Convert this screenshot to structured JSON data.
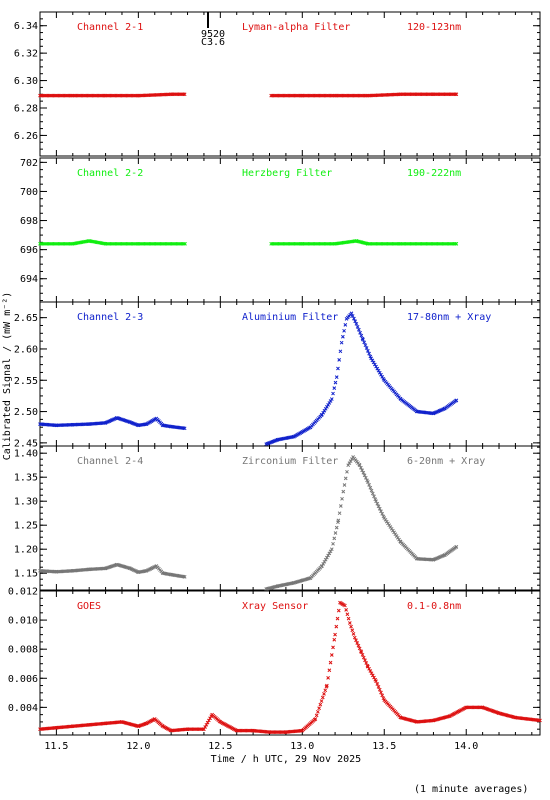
{
  "colors": {
    "red": "#dd1111",
    "green": "#11ee11",
    "blue": "#1122cc",
    "gray": "#777777",
    "axis": "#000000"
  },
  "xaxis": {
    "label": "Time / h UTC, 29 Nov 2025",
    "range": [
      11.4,
      14.45
    ],
    "ticks": [
      11.5,
      12.0,
      12.5,
      13.0,
      13.5,
      14.0
    ],
    "tick_labels": [
      "11.5",
      "12.0",
      "12.5",
      "13.0",
      "13.5",
      "14.0"
    ]
  },
  "ylabel": "Calibrated Signal / (mW m⁻²)",
  "footer": "(1 minute averages)",
  "event_marker": {
    "lines": [
      "9520",
      "C3.6"
    ]
  },
  "chart_data": [
    {
      "type": "scatter",
      "name": "Channel 2-1",
      "filter": "Lyman-alpha Filter",
      "band": "120-123nm",
      "color_key": "red",
      "ylim": [
        6.245,
        6.35
      ],
      "yticks": [
        6.26,
        6.28,
        6.3,
        6.32,
        6.34
      ],
      "ytick_labels": [
        "6.26",
        "6.28",
        "6.30",
        "6.32",
        "6.34"
      ],
      "x": [
        11.4,
        11.6,
        11.8,
        12.0,
        12.2,
        12.29,
        12.81,
        13.0,
        13.2,
        13.4,
        13.6,
        13.8,
        13.94
      ],
      "y": [
        6.289,
        6.289,
        6.289,
        6.289,
        6.29,
        6.29,
        6.289,
        6.289,
        6.289,
        6.289,
        6.29,
        6.29,
        6.29
      ],
      "gap": [
        12.29,
        12.81
      ]
    },
    {
      "type": "scatter",
      "name": "Channel 2-2",
      "filter": "Herzberg Filter",
      "band": "190-222nm",
      "color_key": "green",
      "ylim": [
        692.4,
        702.3
      ],
      "yticks": [
        694,
        696,
        698,
        700,
        702
      ],
      "ytick_labels": [
        "694",
        "696",
        "698",
        "700",
        "702"
      ],
      "x": [
        11.4,
        11.6,
        11.7,
        11.8,
        12.0,
        12.29,
        12.81,
        13.0,
        13.2,
        13.33,
        13.4,
        13.6,
        13.94
      ],
      "y": [
        696.4,
        696.4,
        696.6,
        696.4,
        696.4,
        696.4,
        696.4,
        696.4,
        696.4,
        696.6,
        696.4,
        696.4,
        696.4
      ],
      "gap": [
        12.29,
        12.81
      ]
    },
    {
      "type": "scatter",
      "name": "Channel 2-3",
      "filter": "Aluminium Filter",
      "band": "17-80nm + Xray",
      "color_key": "blue",
      "ylim": [
        2.445,
        2.675
      ],
      "yticks": [
        2.45,
        2.5,
        2.55,
        2.6,
        2.65
      ],
      "ytick_labels": [
        "2.45",
        "2.50",
        "2.55",
        "2.60",
        "2.65"
      ],
      "x": [
        11.4,
        11.5,
        11.6,
        11.7,
        11.8,
        11.87,
        11.95,
        12.0,
        12.05,
        12.11,
        12.15,
        12.2,
        12.29,
        12.78,
        12.85,
        12.95,
        13.05,
        13.12,
        13.18,
        13.21,
        13.24,
        13.27,
        13.3,
        13.33,
        13.37,
        13.42,
        13.5,
        13.6,
        13.7,
        13.8,
        13.87,
        13.94
      ],
      "y": [
        2.48,
        2.478,
        2.479,
        2.48,
        2.482,
        2.49,
        2.483,
        2.478,
        2.48,
        2.489,
        2.478,
        2.476,
        2.473,
        2.448,
        2.455,
        2.46,
        2.475,
        2.495,
        2.52,
        2.555,
        2.61,
        2.648,
        2.657,
        2.64,
        2.615,
        2.585,
        2.55,
        2.52,
        2.5,
        2.497,
        2.505,
        2.518
      ],
      "gap": [
        12.29,
        12.78
      ]
    },
    {
      "type": "scatter",
      "name": "Channel 2-4",
      "filter": "Zirconium Filter",
      "band": "6-20nm + Xray",
      "color_key": "gray",
      "ylim": [
        1.115,
        1.415
      ],
      "yticks": [
        1.15,
        1.2,
        1.25,
        1.3,
        1.35,
        1.4
      ],
      "ytick_labels": [
        "1.15",
        "1.20",
        "1.25",
        "1.30",
        "1.35",
        "1.40"
      ],
      "x": [
        11.4,
        11.5,
        11.6,
        11.7,
        11.8,
        11.87,
        11.95,
        12.0,
        12.05,
        12.11,
        12.15,
        12.2,
        12.29,
        12.78,
        12.85,
        12.95,
        13.05,
        13.12,
        13.18,
        13.22,
        13.25,
        13.28,
        13.31,
        13.35,
        13.4,
        13.45,
        13.5,
        13.6,
        13.7,
        13.8,
        13.87,
        13.94
      ],
      "y": [
        1.155,
        1.153,
        1.155,
        1.158,
        1.16,
        1.168,
        1.16,
        1.152,
        1.155,
        1.165,
        1.15,
        1.147,
        1.142,
        1.117,
        1.123,
        1.13,
        1.14,
        1.165,
        1.2,
        1.26,
        1.32,
        1.375,
        1.392,
        1.375,
        1.34,
        1.3,
        1.265,
        1.215,
        1.18,
        1.178,
        1.188,
        1.205
      ],
      "gap": [
        12.29,
        12.78
      ]
    },
    {
      "type": "scatter",
      "name": "GOES",
      "filter": "Xray Sensor",
      "band": "0.1-0.8nm",
      "color_key": "red",
      "ylim": [
        0.0021,
        0.012
      ],
      "yticks": [
        0.004,
        0.006,
        0.008,
        0.01,
        0.012
      ],
      "ytick_labels": [
        "0.004",
        "0.006",
        "0.008",
        "0.010",
        "0.012"
      ],
      "x": [
        11.4,
        11.5,
        11.6,
        11.7,
        11.8,
        11.9,
        12.0,
        12.05,
        12.1,
        12.15,
        12.2,
        12.3,
        12.4,
        12.45,
        12.5,
        12.6,
        12.7,
        12.8,
        12.9,
        13.0,
        13.08,
        13.15,
        13.2,
        13.23,
        13.26,
        13.29,
        13.32,
        13.36,
        13.4,
        13.45,
        13.5,
        13.6,
        13.7,
        13.8,
        13.9,
        14.0,
        14.1,
        14.2,
        14.3,
        14.45
      ],
      "y": [
        0.0025,
        0.0026,
        0.0027,
        0.0028,
        0.0029,
        0.003,
        0.0027,
        0.0029,
        0.0032,
        0.0027,
        0.0024,
        0.0025,
        0.0025,
        0.0035,
        0.003,
        0.0024,
        0.0024,
        0.0023,
        0.0023,
        0.0024,
        0.0032,
        0.0055,
        0.009,
        0.0112,
        0.011,
        0.0098,
        0.0088,
        0.0078,
        0.0068,
        0.0058,
        0.0045,
        0.0033,
        0.003,
        0.0031,
        0.0034,
        0.004,
        0.004,
        0.0036,
        0.0033,
        0.0031
      ]
    }
  ]
}
